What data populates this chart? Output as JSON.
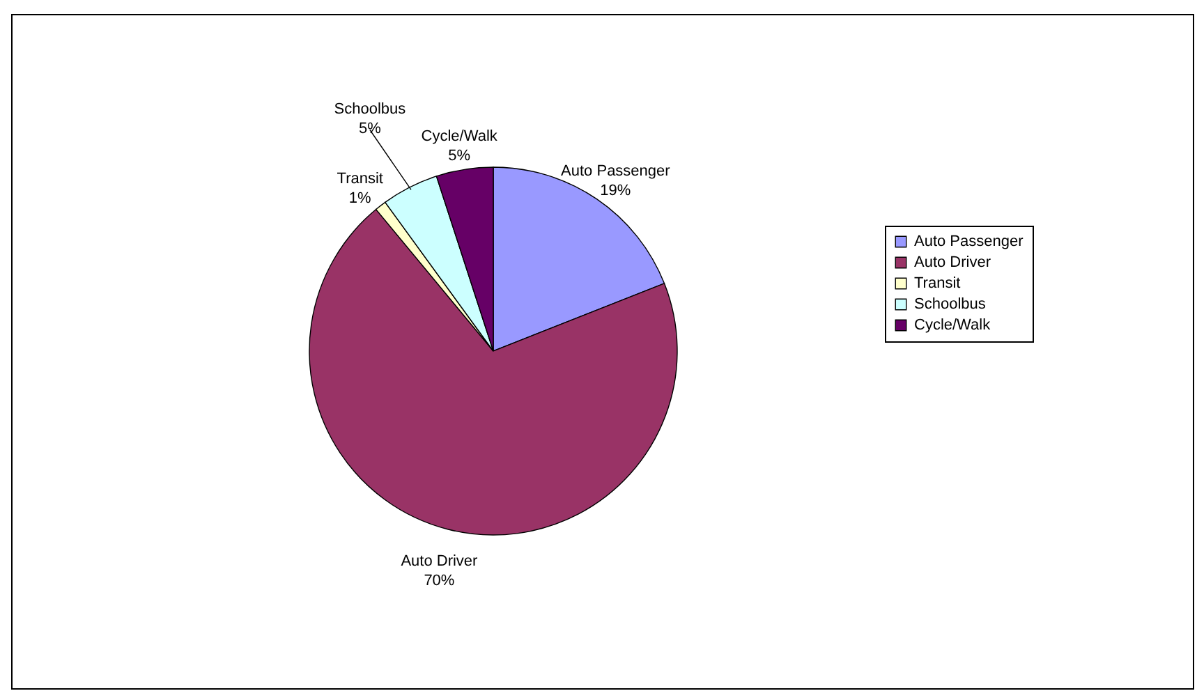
{
  "chart_data": {
    "type": "pie",
    "categories": [
      "Auto Passenger",
      "Auto Driver",
      "Transit",
      "Schoolbus",
      "Cycle/Walk"
    ],
    "values": [
      19,
      70,
      1,
      5,
      5
    ],
    "value_labels": [
      "19%",
      "70%",
      "1%",
      "5%",
      "5%"
    ],
    "colors": [
      "#9999ff",
      "#993366",
      "#ffffcc",
      "#ccffff",
      "#660066"
    ],
    "legend": "right"
  }
}
